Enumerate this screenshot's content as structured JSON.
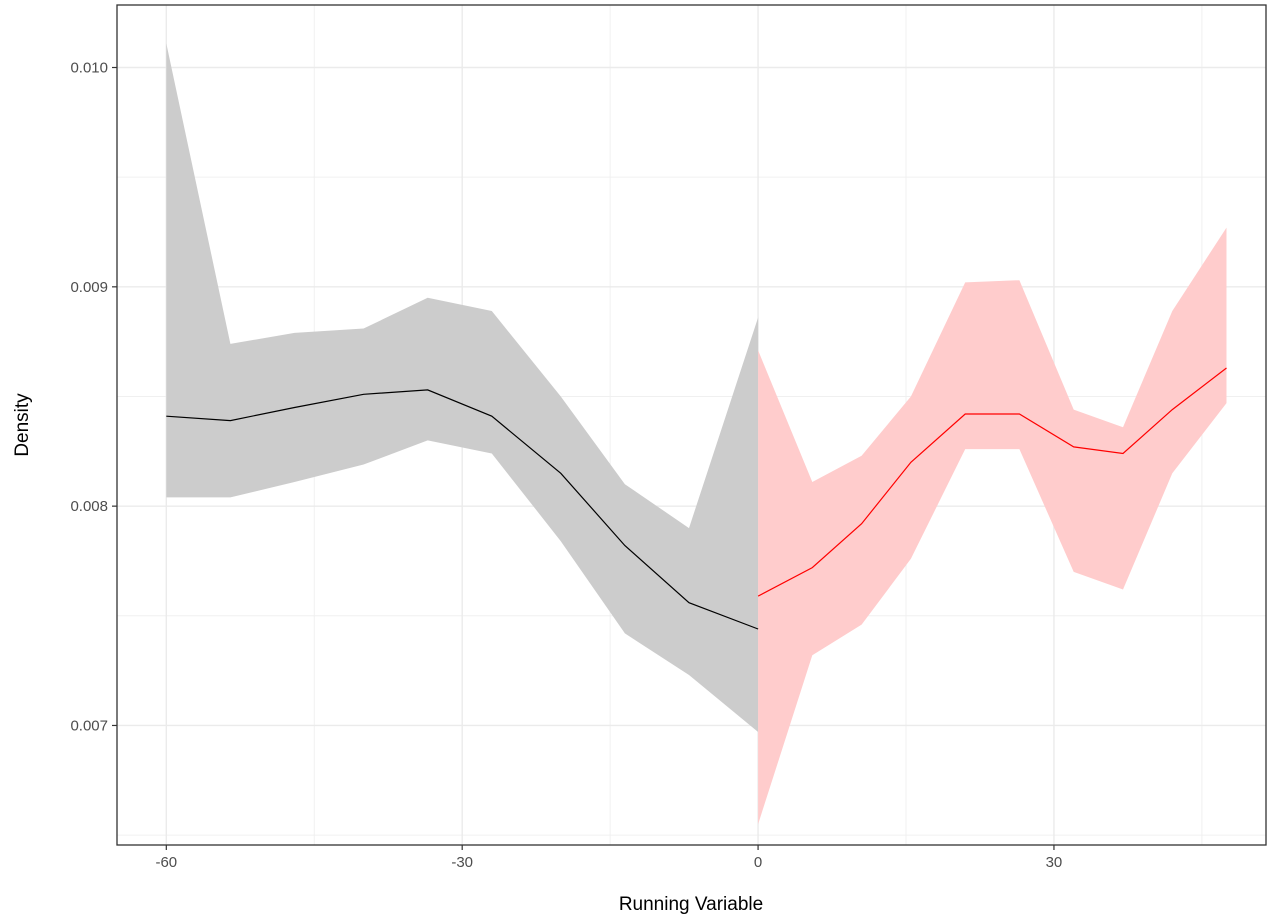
{
  "chart_data": {
    "type": "area",
    "title": "",
    "xlabel": "Running Variable",
    "ylabel": "Density",
    "xlim": [
      -65,
      51.5
    ],
    "ylim": [
      0.006455,
      0.010285
    ],
    "x_ticks": [
      -60,
      -30,
      0,
      30
    ],
    "x_tick_labels": [
      "-60",
      "-30",
      "0",
      "30"
    ],
    "y_ticks": [
      0.007,
      0.008,
      0.009,
      0.01
    ],
    "y_tick_labels": [
      "0.007",
      "0.008",
      "0.009",
      "0.010"
    ],
    "x_minor_gridlines": [
      -45,
      -15,
      15,
      45
    ],
    "y_minor_gridlines": [
      0.0065,
      0.0075,
      0.0085,
      0.0095
    ],
    "grid": true,
    "legend": "none",
    "series": [
      {
        "color": "#000000",
        "fill": "#cccccc",
        "x": [
          -60,
          -53.5,
          -47,
          -40,
          -33.5,
          -27,
          -20,
          -13.5,
          -7,
          0
        ],
        "y": [
          0.00841,
          0.00839,
          0.00845,
          0.00851,
          0.00853,
          0.00841,
          0.00815,
          0.00782,
          0.00756,
          0.00744
        ],
        "lower": [
          0.00804,
          0.00804,
          0.00811,
          0.00819,
          0.0083,
          0.00824,
          0.00784,
          0.00742,
          0.00723,
          0.00697
        ],
        "upper": [
          0.01011,
          0.00874,
          0.00879,
          0.00881,
          0.00895,
          0.00889,
          0.0085,
          0.0081,
          0.0079,
          0.00886
        ]
      },
      {
        "color": "#ff0000",
        "fill": "#ffcccc",
        "x": [
          0,
          5.5,
          10.5,
          15.5,
          21,
          26.5,
          32,
          37,
          42,
          47.5
        ],
        "y": [
          0.00759,
          0.00772,
          0.00792,
          0.0082,
          0.00842,
          0.00842,
          0.00827,
          0.00824,
          0.00844,
          0.00863
        ],
        "lower": [
          0.00655,
          0.00732,
          0.00746,
          0.00776,
          0.00826,
          0.00826,
          0.0077,
          0.00762,
          0.00815,
          0.00847
        ],
        "upper": [
          0.00871,
          0.00811,
          0.00823,
          0.0085,
          0.00902,
          0.00903,
          0.00844,
          0.00836,
          0.00889,
          0.00927
        ]
      }
    ]
  }
}
